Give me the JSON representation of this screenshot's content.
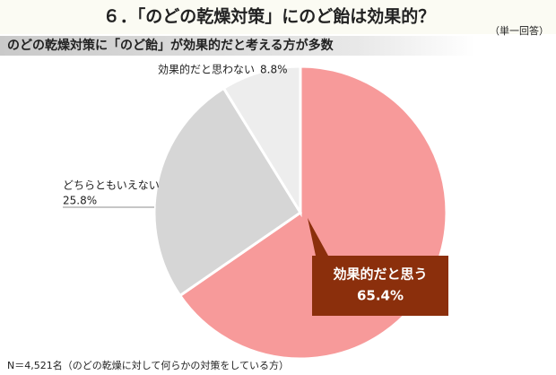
{
  "chart_data": {
    "type": "pie",
    "title": "６．「のどの乾燥対策」にのど飴は効果的？",
    "subtitle": "のどの乾燥対策に「のど飴」が効果的だと考える方が多数",
    "note": "（単一回答）",
    "footnote": "N＝4,521名（のどの乾燥に対して何らかの対策をしている方）",
    "categories": [
      "効果的だと思う",
      "どちらともいえない",
      "効果的だと思わない"
    ],
    "values": [
      65.4,
      25.8,
      8.8
    ],
    "value_labels": [
      "65.4%",
      "25.8%",
      "8.8%"
    ],
    "colors": [
      "#f79a9a",
      "#d6d6d6",
      "#ededed"
    ],
    "callout_color": "#8b2f0c"
  }
}
